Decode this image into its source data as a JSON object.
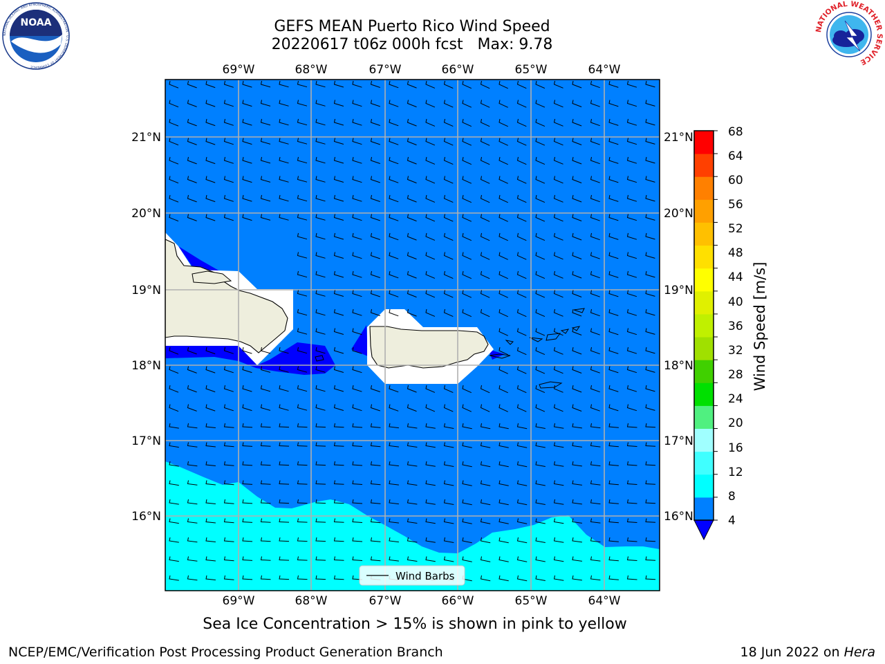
{
  "title": {
    "line1": "GEFS MEAN Puerto Rico Wind Speed",
    "line2": "20220617 t06z 000h fcst   Max: 9.78"
  },
  "caption": "Sea Ice Concentration > 15% is shown in pink to yellow",
  "footer": {
    "left": "NCEP/EMC/Verification Post Processing Product Generation Branch",
    "date": "18 Jun 2022 on ",
    "machine": "Hera"
  },
  "logos": {
    "noaa_text": "NOAA",
    "noaa_ring": "NATIONAL OCEANIC AND ATMOSPHERIC ADMINISTRATION · U.S. DEPARTMENT OF COMMERCE",
    "nws_ring": "NATIONAL WEATHER SERVICE"
  },
  "map": {
    "lon_labels": [
      "69°W",
      "68°W",
      "67°W",
      "66°W",
      "65°W",
      "64°W"
    ],
    "lat_labels": [
      "21°N",
      "20°N",
      "19°N",
      "18°N",
      "17°N",
      "16°N"
    ],
    "legend_label": "Wind Barbs"
  },
  "colorbar": {
    "label": "Wind Speed [m/s]",
    "ticks": [
      "4",
      "8",
      "12",
      "16",
      "20",
      "24",
      "28",
      "32",
      "36",
      "40",
      "44",
      "48",
      "52",
      "56",
      "60",
      "64",
      "68"
    ],
    "colors": [
      "#0080ff",
      "#00ffff",
      "#40ffff",
      "#a0ffff",
      "#50f080",
      "#00e000",
      "#40d000",
      "#a0e000",
      "#c0f000",
      "#e0f000",
      "#ffff00",
      "#ffe000",
      "#ffc000",
      "#ffa000",
      "#ff8000",
      "#ff4000",
      "#ff0000"
    ],
    "under_color": "#0000ff"
  },
  "colors": {
    "ocean": "#0080ff",
    "ocean_low": "#0000ff",
    "ocean_high": "#00ffff",
    "land": "#eeeedd"
  }
}
